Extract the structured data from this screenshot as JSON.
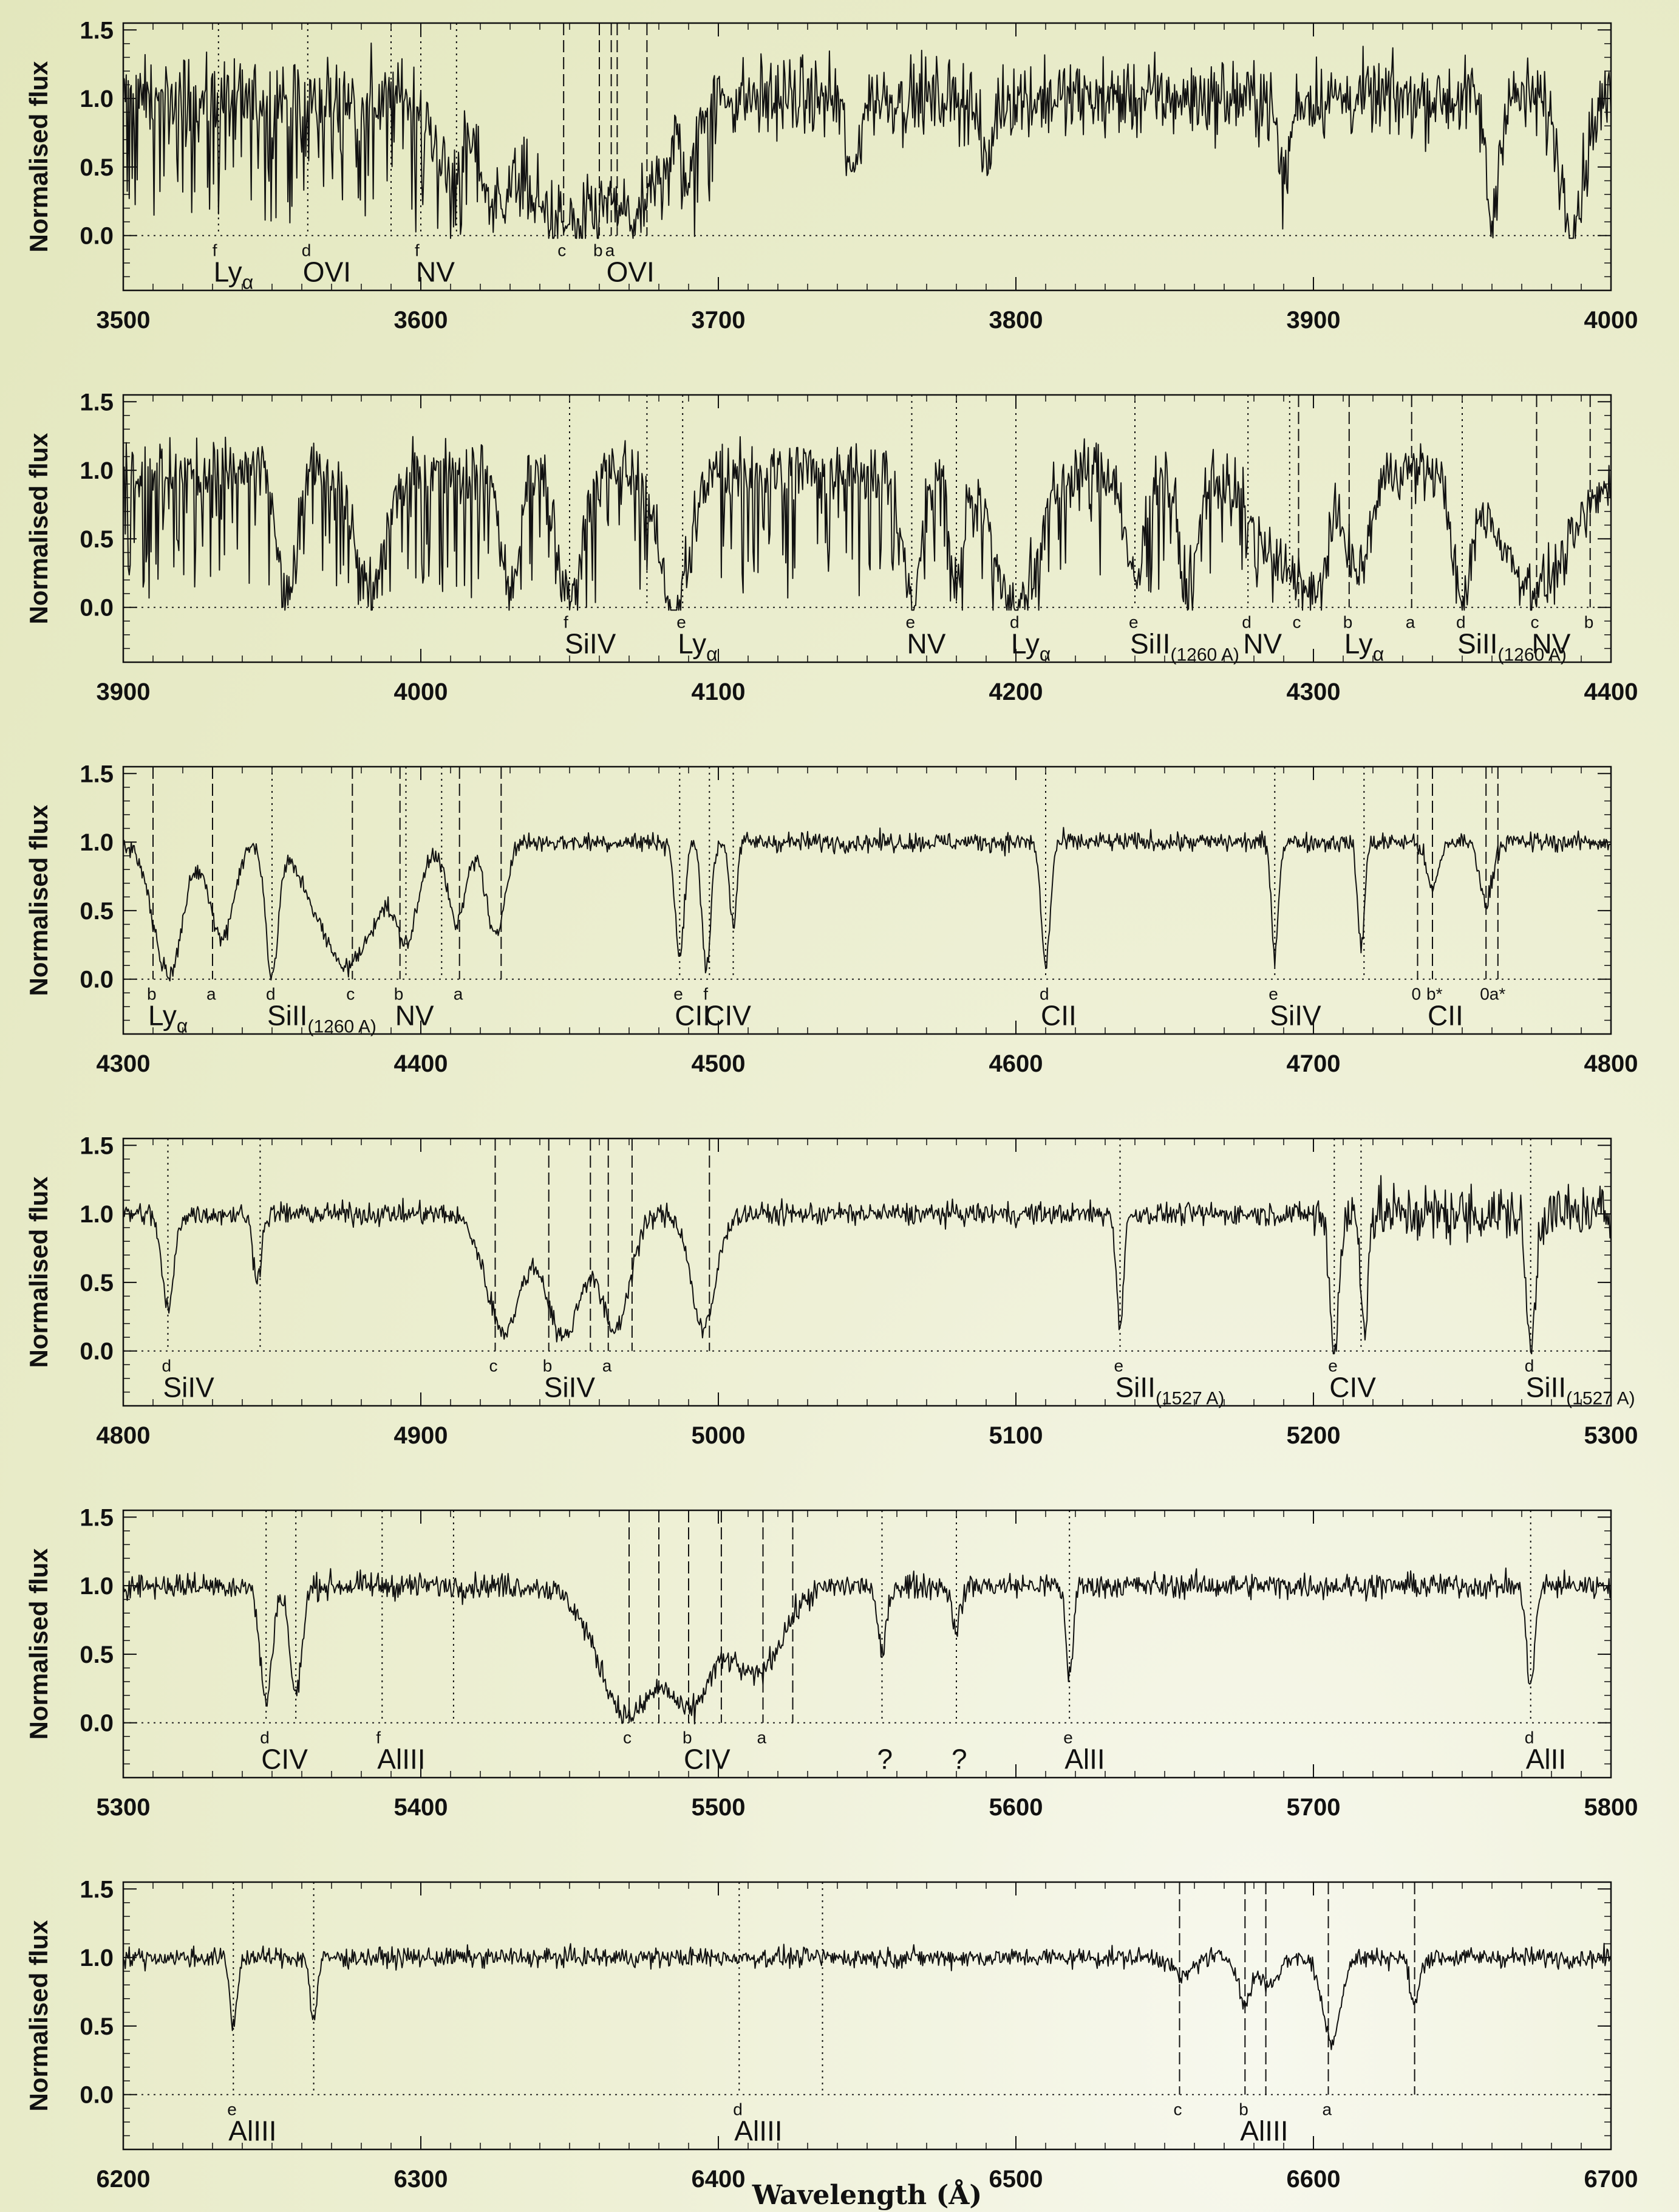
{
  "chart_data": {
    "type": "line",
    "ylabel": "Normalised flux",
    "xlabel": "Wavelength (Å)",
    "ylim": [
      -0.4,
      1.55
    ],
    "yticks": [
      "1.5",
      "1.0",
      "0.5",
      "0.0"
    ],
    "panels": [
      {
        "xlim": [
          3500,
          4000
        ],
        "xticks": [
          "3500",
          "3600",
          "3700",
          "3800",
          "3900",
          "4000"
        ],
        "noise": 0.14,
        "troughs": [
          {
            "center": 3610,
            "width": 4,
            "depth": 0.6
          },
          {
            "center": 3625,
            "width": 5,
            "depth": 0.7
          },
          {
            "center": 3650,
            "width": 14,
            "depth": 0.95
          },
          {
            "center": 3672,
            "width": 8,
            "depth": 0.8
          },
          {
            "center": 3690,
            "width": 2,
            "depth": 0.6
          },
          {
            "center": 3745,
            "width": 2,
            "depth": 0.6
          },
          {
            "center": 3790,
            "width": 2,
            "depth": 0.5
          },
          {
            "center": 3890,
            "width": 2,
            "depth": 0.6
          },
          {
            "center": 3960,
            "width": 2,
            "depth": 0.9
          },
          {
            "center": 3987,
            "width": 4,
            "depth": 0.9
          }
        ],
        "forest_end": 3700,
        "markers": [
          {
            "x": 3532,
            "style": "dotted",
            "letter": "f",
            "label": "Lyα"
          },
          {
            "x": 3562,
            "style": "dotted",
            "letter": "d",
            "label": "OVI"
          },
          {
            "x": 3590,
            "style": "dotted",
            "letter": "",
            "label": ""
          },
          {
            "x": 3600,
            "style": "dotted",
            "letter": "f",
            "label": "NV"
          },
          {
            "x": 3612,
            "style": "dotted",
            "letter": "",
            "label": ""
          },
          {
            "x": 3648,
            "style": "dashed",
            "letter": "c",
            "label": ""
          },
          {
            "x": 3660,
            "style": "dashed",
            "letter": "b",
            "label": ""
          },
          {
            "x": 3664,
            "style": "dashed",
            "letter": "a",
            "label": "OVI"
          },
          {
            "x": 3666,
            "style": "dashed",
            "letter": "",
            "label": ""
          },
          {
            "x": 3676,
            "style": "dashed",
            "letter": "",
            "label": ""
          }
        ]
      },
      {
        "xlim": [
          3900,
          4400
        ],
        "xticks": [
          "3900",
          "4000",
          "4100",
          "4200",
          "4300",
          "4400"
        ],
        "noise": 0.1,
        "troughs": [
          {
            "center": 3955,
            "width": 3,
            "depth": 1.0
          },
          {
            "center": 3983,
            "width": 5,
            "depth": 0.9
          },
          {
            "center": 4030,
            "width": 3,
            "depth": 0.9
          },
          {
            "center": 4050,
            "width": 4,
            "depth": 0.95
          },
          {
            "center": 4085,
            "width": 5,
            "depth": 1.0
          },
          {
            "center": 4165,
            "width": 3,
            "depth": 0.95
          },
          {
            "center": 4180,
            "width": 2,
            "depth": 0.9
          },
          {
            "center": 4200,
            "width": 7,
            "depth": 1.0
          },
          {
            "center": 4240,
            "width": 3,
            "depth": 0.8
          },
          {
            "center": 4258,
            "width": 3,
            "depth": 0.9
          },
          {
            "center": 4290,
            "width": 10,
            "depth": 0.7
          },
          {
            "center": 4300,
            "width": 4,
            "depth": 0.9
          },
          {
            "center": 4315,
            "width": 4,
            "depth": 0.75
          },
          {
            "center": 4350,
            "width": 3,
            "depth": 1.0
          },
          {
            "center": 4375,
            "width": 12,
            "depth": 0.85
          }
        ],
        "forest_end": 4290,
        "markers": [
          {
            "x": 4050,
            "style": "dotted",
            "letter": "f",
            "label": "SiIV"
          },
          {
            "x": 4076,
            "style": "dotted",
            "letter": "",
            "label": ""
          },
          {
            "x": 4088,
            "style": "dotted",
            "letter": "e",
            "label": "Lyα"
          },
          {
            "x": 4165,
            "style": "dotted",
            "letter": "e",
            "label": "NV"
          },
          {
            "x": 4180,
            "style": "dotted",
            "letter": "",
            "label": ""
          },
          {
            "x": 4200,
            "style": "dotted",
            "letter": "d",
            "label": "Lyα"
          },
          {
            "x": 4240,
            "style": "dotted",
            "letter": "e",
            "label": "SiII",
            "sub": "(1260 A)"
          },
          {
            "x": 4278,
            "style": "dotted",
            "letter": "d",
            "label": "NV"
          },
          {
            "x": 4292,
            "style": "dotted",
            "letter": "",
            "label": ""
          },
          {
            "x": 4295,
            "style": "dashed",
            "letter": "c",
            "label": ""
          },
          {
            "x": 4312,
            "style": "dashed",
            "letter": "b",
            "label": "Lyα"
          },
          {
            "x": 4333,
            "style": "dashed",
            "letter": "a",
            "label": ""
          },
          {
            "x": 4350,
            "style": "dotted",
            "letter": "d",
            "label": "SiII",
            "sub": "(1260 A)"
          },
          {
            "x": 4375,
            "style": "dashed",
            "letter": "c",
            "label": "NV"
          },
          {
            "x": 4393,
            "style": "dashed",
            "letter": "b",
            "label": ""
          }
        ]
      },
      {
        "xlim": [
          4300,
          4800
        ],
        "xticks": [
          "4300",
          "4400",
          "4500",
          "4600",
          "4700",
          "4800"
        ],
        "noise": 0.035,
        "troughs": [
          {
            "center": 4315,
            "width": 5,
            "depth": 0.95
          },
          {
            "center": 4333,
            "width": 4,
            "depth": 0.7
          },
          {
            "center": 4350,
            "width": 2,
            "depth": 1.0
          },
          {
            "center": 4375,
            "width": 10,
            "depth": 0.9
          },
          {
            "center": 4395,
            "width": 4,
            "depth": 0.7
          },
          {
            "center": 4412,
            "width": 3,
            "depth": 0.6
          },
          {
            "center": 4425,
            "width": 3,
            "depth": 0.7
          },
          {
            "center": 4487,
            "width": 1.5,
            "depth": 0.85
          },
          {
            "center": 4496,
            "width": 1.5,
            "depth": 0.9
          },
          {
            "center": 4505,
            "width": 1.2,
            "depth": 0.6
          },
          {
            "center": 4610,
            "width": 1.5,
            "depth": 0.9
          },
          {
            "center": 4687,
            "width": 1.2,
            "depth": 0.8
          },
          {
            "center": 4716,
            "width": 1.2,
            "depth": 0.75
          },
          {
            "center": 4740,
            "width": 2,
            "depth": 0.35
          },
          {
            "center": 4758,
            "width": 2,
            "depth": 0.45
          }
        ],
        "forest_end": 4300,
        "markers": [
          {
            "x": 4310,
            "style": "dashed",
            "letter": "b",
            "label": "Lyα"
          },
          {
            "x": 4330,
            "style": "dashed",
            "letter": "a",
            "label": ""
          },
          {
            "x": 4350,
            "style": "dotted",
            "letter": "d",
            "label": "SiII",
            "sub": "(1260 A)"
          },
          {
            "x": 4377,
            "style": "dashed",
            "letter": "c",
            "label": ""
          },
          {
            "x": 4393,
            "style": "dashed",
            "letter": "b",
            "label": "NV"
          },
          {
            "x": 4395,
            "style": "dotted",
            "letter": "",
            "label": ""
          },
          {
            "x": 4407,
            "style": "dotted",
            "letter": "",
            "label": ""
          },
          {
            "x": 4413,
            "style": "dashed",
            "letter": "a",
            "label": ""
          },
          {
            "x": 4427,
            "style": "dashed",
            "letter": "",
            "label": ""
          },
          {
            "x": 4487,
            "style": "dotted",
            "letter": "e",
            "label": "CII"
          },
          {
            "x": 4497,
            "style": "dotted",
            "letter": "f",
            "label": "CIV"
          },
          {
            "x": 4505,
            "style": "dotted",
            "letter": "",
            "label": ""
          },
          {
            "x": 4610,
            "style": "dotted",
            "letter": "d",
            "label": "CII"
          },
          {
            "x": 4687,
            "style": "dotted",
            "letter": "e",
            "label": "SiIV"
          },
          {
            "x": 4717,
            "style": "dotted",
            "letter": "",
            "label": ""
          },
          {
            "x": 4735,
            "style": "dashed",
            "letter": "0",
            "label": ""
          },
          {
            "x": 4740,
            "style": "dashed",
            "letter": "b*",
            "label": "CII"
          },
          {
            "x": 4758,
            "style": "dashed",
            "letter": "0a*",
            "label": ""
          },
          {
            "x": 4762,
            "style": "dashed",
            "letter": "",
            "label": ""
          }
        ]
      },
      {
        "xlim": [
          4800,
          5300
        ],
        "xticks": [
          "4800",
          "4900",
          "5000",
          "5100",
          "5200",
          "5300"
        ],
        "noise": 0.04,
        "noise_boost_from": 5200,
        "troughs": [
          {
            "center": 4815,
            "width": 2,
            "depth": 0.7
          },
          {
            "center": 4845,
            "width": 1.5,
            "depth": 0.45
          },
          {
            "center": 4928,
            "width": 6,
            "depth": 0.85
          },
          {
            "center": 4948,
            "width": 6,
            "depth": 0.9
          },
          {
            "center": 4965,
            "width": 5,
            "depth": 0.85
          },
          {
            "center": 4995,
            "width": 4,
            "depth": 0.85
          },
          {
            "center": 5135,
            "width": 1.2,
            "depth": 0.8
          },
          {
            "center": 5207,
            "width": 1.5,
            "depth": 1.0
          },
          {
            "center": 5217,
            "width": 1.2,
            "depth": 0.8
          },
          {
            "center": 5273,
            "width": 1.5,
            "depth": 1.0
          }
        ],
        "forest_end": 4800,
        "markers": [
          {
            "x": 4815,
            "style": "dotted",
            "letter": "d",
            "label": "SiIV"
          },
          {
            "x": 4846,
            "style": "dotted",
            "letter": "",
            "label": ""
          },
          {
            "x": 4925,
            "style": "dashed",
            "letter": "c",
            "label": ""
          },
          {
            "x": 4943,
            "style": "dashed",
            "letter": "b",
            "label": "SiIV"
          },
          {
            "x": 4957,
            "style": "dashed",
            "letter": "",
            "label": ""
          },
          {
            "x": 4963,
            "style": "dashed",
            "letter": "a",
            "label": ""
          },
          {
            "x": 4971,
            "style": "dashed",
            "letter": "",
            "label": ""
          },
          {
            "x": 4997,
            "style": "dashed",
            "letter": "",
            "label": ""
          },
          {
            "x": 5135,
            "style": "dotted",
            "letter": "e",
            "label": "SiII",
            "sub": "(1527 A)"
          },
          {
            "x": 5207,
            "style": "dotted",
            "letter": "e",
            "label": "CIV"
          },
          {
            "x": 5216,
            "style": "dotted",
            "letter": "",
            "label": ""
          },
          {
            "x": 5273,
            "style": "dotted",
            "letter": "d",
            "label": "SiII",
            "sub": "(1527 A)"
          }
        ]
      },
      {
        "xlim": [
          5300,
          5800
        ],
        "xticks": [
          "5300",
          "5400",
          "5500",
          "5600",
          "5700",
          "5800"
        ],
        "noise": 0.045,
        "troughs": [
          {
            "center": 5348,
            "width": 2,
            "depth": 0.85
          },
          {
            "center": 5358,
            "width": 2,
            "depth": 0.8
          },
          {
            "center": 5470,
            "width": 10,
            "depth": 0.95
          },
          {
            "center": 5490,
            "width": 8,
            "depth": 0.9
          },
          {
            "center": 5512,
            "width": 9,
            "depth": 0.65
          },
          {
            "center": 5555,
            "width": 1.5,
            "depth": 0.5
          },
          {
            "center": 5580,
            "width": 1.5,
            "depth": 0.3
          },
          {
            "center": 5618,
            "width": 1.2,
            "depth": 0.65
          },
          {
            "center": 5773,
            "width": 1.5,
            "depth": 0.7
          }
        ],
        "forest_end": 5300,
        "markers": [
          {
            "x": 5348,
            "style": "dotted",
            "letter": "d",
            "label": "CIV"
          },
          {
            "x": 5358,
            "style": "dotted",
            "letter": "",
            "label": ""
          },
          {
            "x": 5387,
            "style": "dotted",
            "letter": "f",
            "label": "AlIII"
          },
          {
            "x": 5411,
            "style": "dotted",
            "letter": "",
            "label": ""
          },
          {
            "x": 5470,
            "style": "dashed",
            "letter": "c",
            "label": ""
          },
          {
            "x": 5480,
            "style": "dashed",
            "letter": "",
            "label": ""
          },
          {
            "x": 5490,
            "style": "dashed",
            "letter": "b",
            "label": "CIV"
          },
          {
            "x": 5501,
            "style": "dashed",
            "letter": "",
            "label": ""
          },
          {
            "x": 5515,
            "style": "dashed",
            "letter": "a",
            "label": ""
          },
          {
            "x": 5525,
            "style": "dashed",
            "letter": "",
            "label": ""
          },
          {
            "x": 5555,
            "style": "dotted",
            "letter": "",
            "label": "?"
          },
          {
            "x": 5580,
            "style": "dotted",
            "letter": "",
            "label": "?"
          },
          {
            "x": 5618,
            "style": "dotted",
            "letter": "e",
            "label": "AlII"
          },
          {
            "x": 5773,
            "style": "dotted",
            "letter": "d",
            "label": "AlII"
          }
        ]
      },
      {
        "xlim": [
          6200,
          6700
        ],
        "xticks": [
          "6200",
          "6300",
          "6400",
          "6500",
          "6600",
          "6700"
        ],
        "noise": 0.035,
        "troughs": [
          {
            "center": 6237,
            "width": 1.2,
            "depth": 0.5
          },
          {
            "center": 6264,
            "width": 1.2,
            "depth": 0.45
          },
          {
            "center": 6556,
            "width": 3,
            "depth": 0.15
          },
          {
            "center": 6577,
            "width": 2,
            "depth": 0.35
          },
          {
            "center": 6585,
            "width": 3,
            "depth": 0.2
          },
          {
            "center": 6606,
            "width": 3,
            "depth": 0.6
          },
          {
            "center": 6634,
            "width": 1.5,
            "depth": 0.35
          }
        ],
        "forest_end": 6200,
        "markers": [
          {
            "x": 6237,
            "style": "dotted",
            "letter": "e",
            "label": "AlIII"
          },
          {
            "x": 6264,
            "style": "dotted",
            "letter": "",
            "label": ""
          },
          {
            "x": 6407,
            "style": "dotted",
            "letter": "d",
            "label": "AlIII"
          },
          {
            "x": 6435,
            "style": "dotted",
            "letter": "",
            "label": ""
          },
          {
            "x": 6555,
            "style": "dashed",
            "letter": "c",
            "label": ""
          },
          {
            "x": 6577,
            "style": "dashed",
            "letter": "b",
            "label": "AlIII"
          },
          {
            "x": 6584,
            "style": "dashed",
            "letter": "",
            "label": ""
          },
          {
            "x": 6605,
            "style": "dashed",
            "letter": "a",
            "label": ""
          },
          {
            "x": 6634,
            "style": "dashed",
            "letter": "",
            "label": ""
          }
        ]
      }
    ]
  }
}
